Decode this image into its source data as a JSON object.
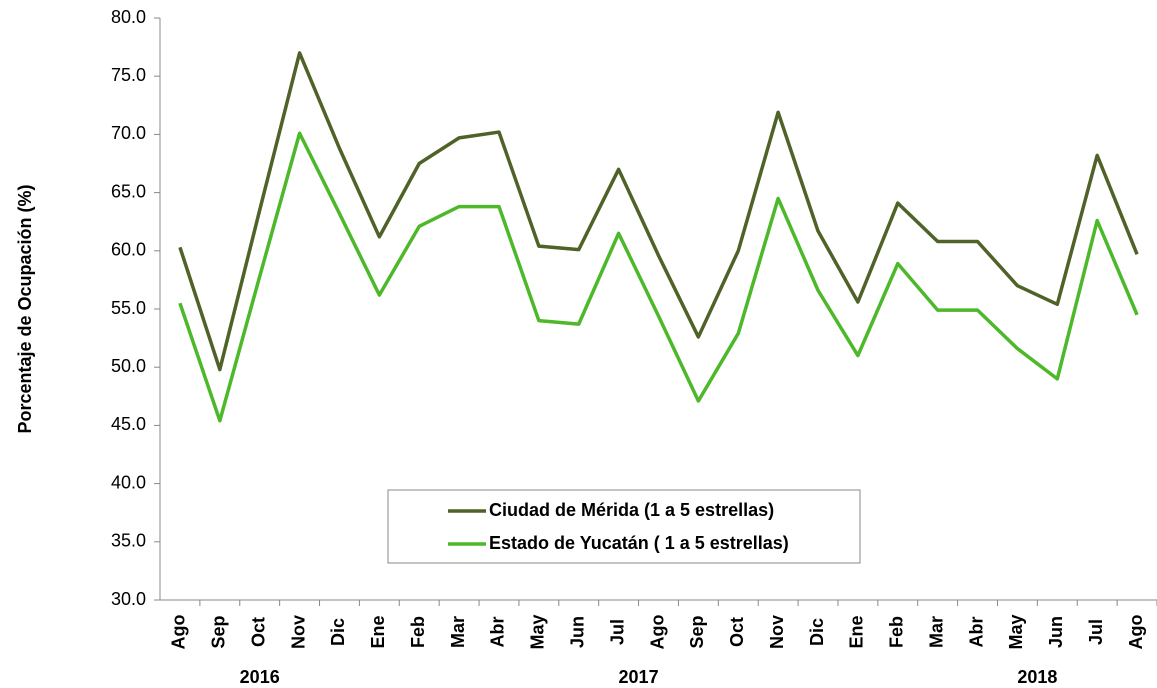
{
  "chart_data": {
    "type": "line",
    "y_label": "Porcentaje de Ocupación (%)",
    "categories": [
      "Ago",
      "Sep",
      "Oct",
      "Nov",
      "Dic",
      "Ene",
      "Feb",
      "Mar",
      "Abr",
      "May",
      "Jun",
      "Jul",
      "Ago",
      "Sep",
      "Oct",
      "Nov",
      "Dic",
      "Ene",
      "Feb",
      "Mar",
      "Abr",
      "May",
      "Jun",
      "Jul",
      "Ago"
    ],
    "years": [
      "2016",
      "2017",
      "2018"
    ],
    "series": [
      {
        "name": "Ciudad de Mérida (1 a 5 estrellas)",
        "color": "#4f6228",
        "values": [
          60.3,
          49.8,
          63.5,
          77.0,
          68.8,
          61.2,
          67.5,
          69.7,
          70.2,
          60.4,
          60.1,
          67.0,
          59.6,
          52.6,
          60.0,
          71.9,
          61.7,
          55.6,
          64.1,
          60.8,
          60.8,
          57.0,
          55.4,
          68.2,
          59.7
        ]
      },
      {
        "name": "Estado de Yucatán ( 1 a 5 estrellas)",
        "color": "#4cb82a",
        "values": [
          55.5,
          45.4,
          57.8,
          70.1,
          63.2,
          56.2,
          62.1,
          63.8,
          63.8,
          54.0,
          53.7,
          61.5,
          54.4,
          47.1,
          52.9,
          64.5,
          56.6,
          51.0,
          58.9,
          54.9,
          54.9,
          51.6,
          49.0,
          62.6,
          54.5
        ]
      }
    ],
    "ylim": [
      30,
      80
    ],
    "yticks": [
      {
        "value": 30,
        "label": "30.0"
      },
      {
        "value": 35,
        "label": "35.0"
      },
      {
        "value": 40,
        "label": "40.0"
      },
      {
        "value": 45,
        "label": "45.0"
      },
      {
        "value": 50,
        "label": "50.0"
      },
      {
        "value": 55,
        "label": "55.0"
      },
      {
        "value": 60,
        "label": "60.0"
      },
      {
        "value": 65,
        "label": "65.0"
      },
      {
        "value": 70,
        "label": "70.0"
      },
      {
        "value": 75,
        "label": "75.0"
      },
      {
        "value": 80,
        "label": "80.0"
      }
    ],
    "grid": false
  }
}
